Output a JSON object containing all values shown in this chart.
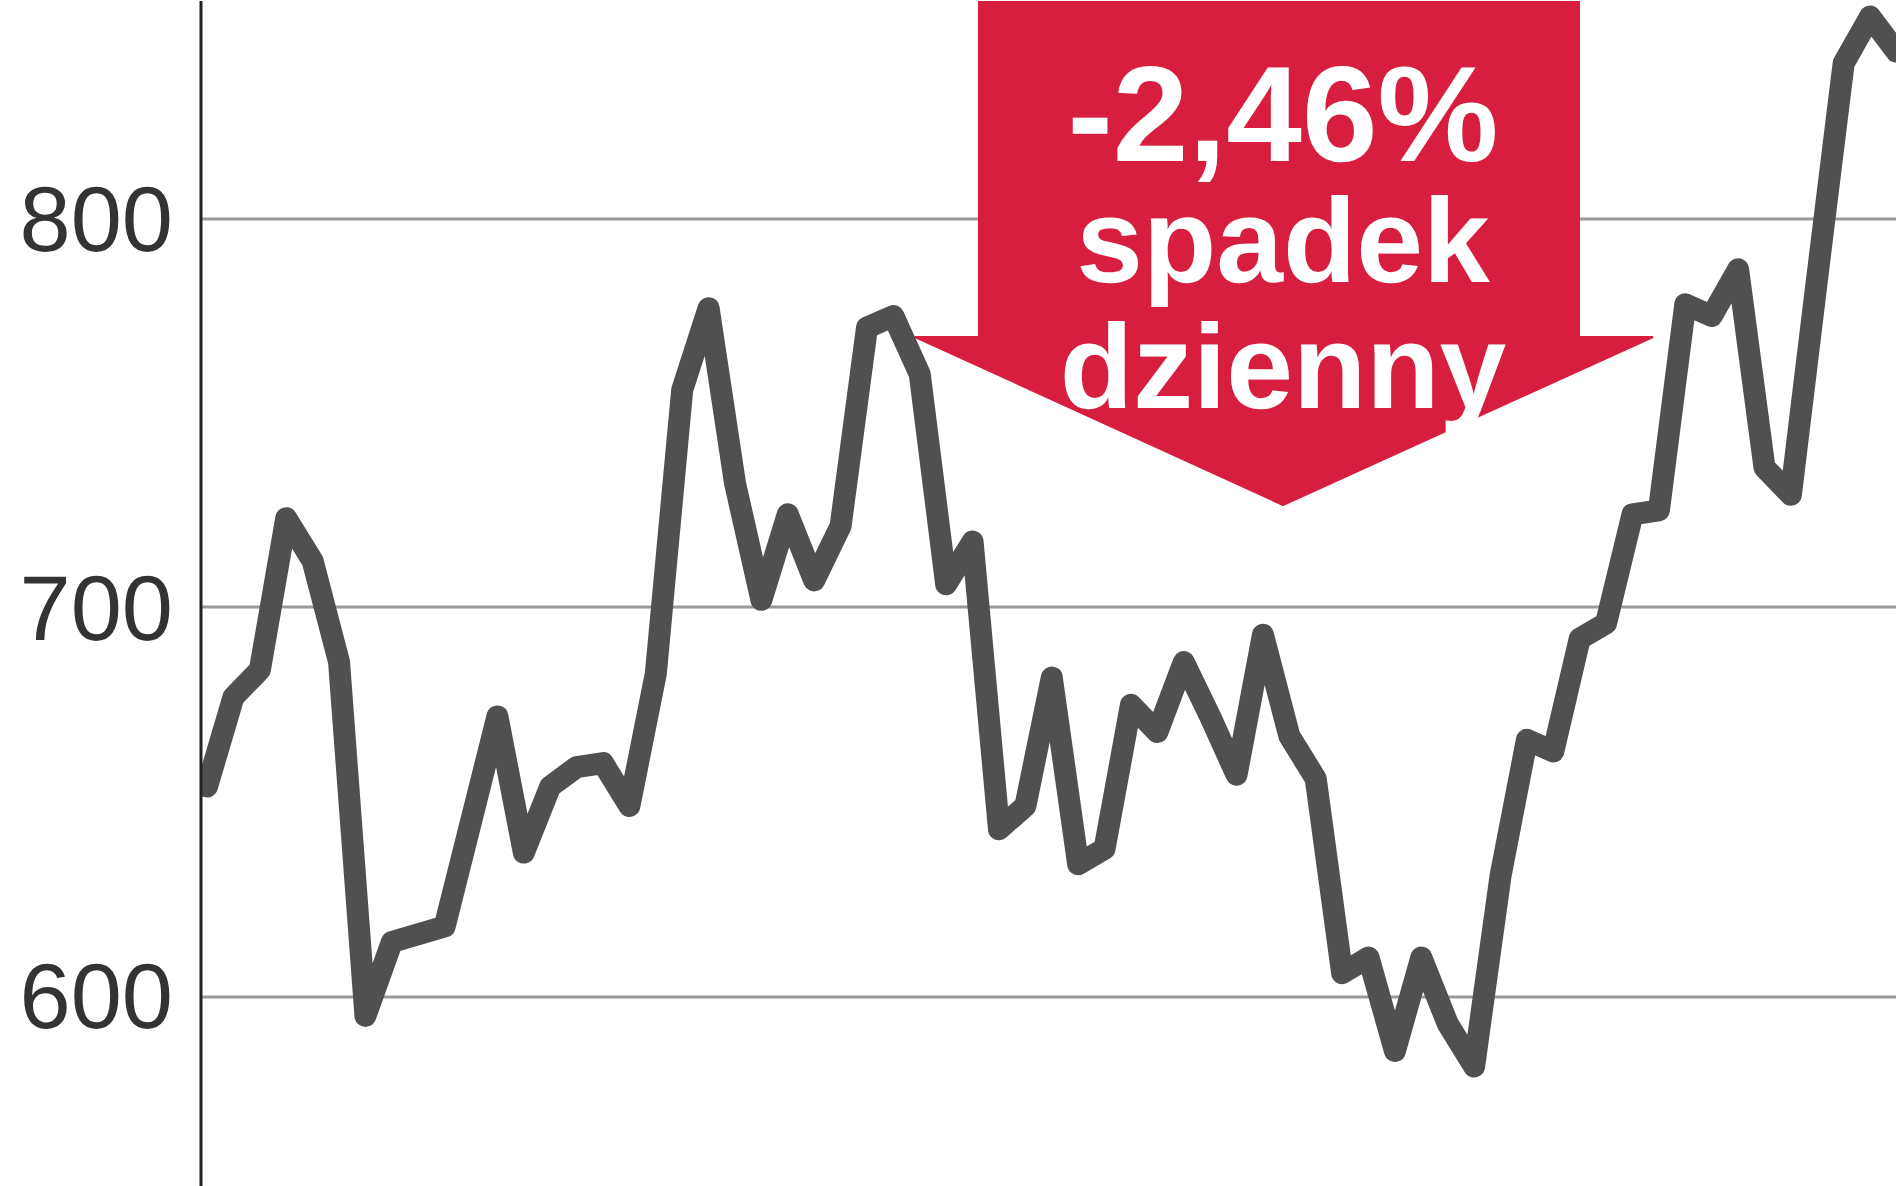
{
  "chart_data": {
    "type": "line",
    "categories": [
      null,
      null,
      null,
      null,
      null,
      null,
      null,
      null,
      null,
      null,
      null,
      null,
      null,
      null,
      null,
      null,
      null,
      null,
      null,
      null,
      null,
      null,
      null,
      null,
      null,
      null,
      null,
      null,
      null,
      null,
      null,
      null,
      null,
      null,
      null,
      null,
      null,
      null,
      null,
      null,
      null,
      null,
      null,
      null,
      null,
      null,
      null,
      null,
      null,
      null,
      null,
      null,
      null,
      null,
      null,
      null,
      null,
      null,
      null,
      null,
      null,
      null,
      null,
      null,
      null
    ],
    "series": [
      {
        "color": "#505050",
        "values": [
          654,
          677,
          684,
          723,
          712,
          686,
          595,
          614,
          616,
          618,
          645,
          672,
          637,
          654,
          659,
          660,
          649,
          683,
          756,
          777,
          732,
          702,
          724,
          707,
          721,
          772,
          775,
          760,
          706,
          717,
          643,
          649,
          682,
          634,
          638,
          675,
          668,
          686,
          672,
          657,
          693,
          667,
          656,
          606,
          610,
          586,
          610,
          593,
          582,
          631,
          666,
          663,
          692,
          696,
          724,
          725,
          778,
          775,
          787,
          736,
          729,
          785,
          840,
          852,
          843
        ]
      }
    ],
    "ylim": [
      551,
      856
    ],
    "yticks": [
      600,
      700,
      800
    ],
    "grid": "y",
    "tick_labels": "y",
    "annotations": [
      "-2,46%\nspadek\ndzienny"
    ]
  }
}
